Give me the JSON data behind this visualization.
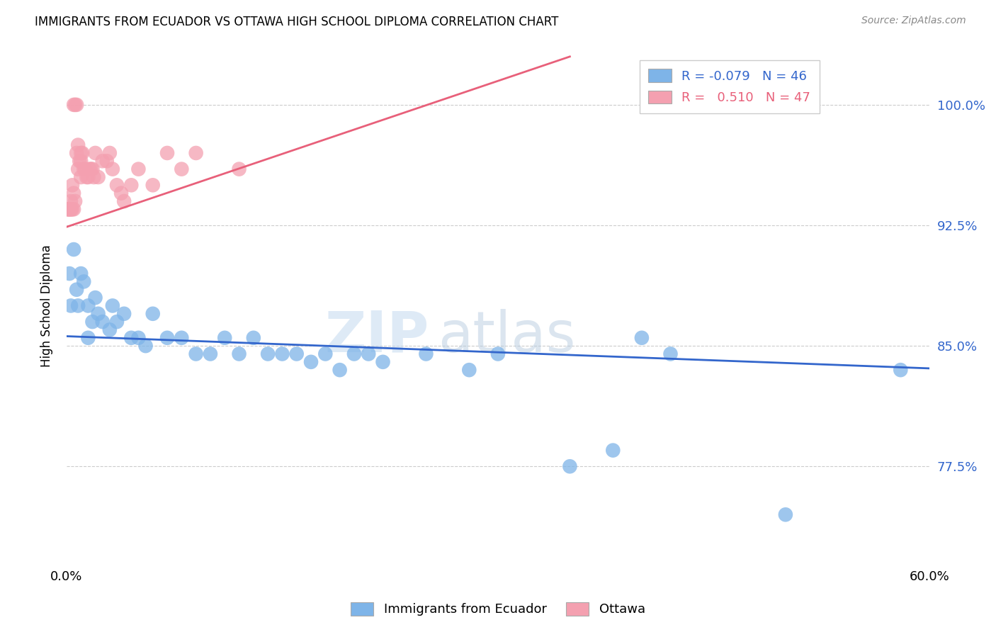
{
  "title": "IMMIGRANTS FROM ECUADOR VS OTTAWA HIGH SCHOOL DIPLOMA CORRELATION CHART",
  "source": "Source: ZipAtlas.com",
  "xlabel_blue": "Immigrants from Ecuador",
  "xlabel_pink": "Ottawa",
  "ylabel": "High School Diploma",
  "xlim": [
    0.0,
    0.6
  ],
  "ylim": [
    0.715,
    1.035
  ],
  "yticks": [
    0.775,
    0.85,
    0.925,
    1.0
  ],
  "yticklabels_right": [
    "77.5%",
    "85.0%",
    "92.5%",
    "100.0%"
  ],
  "legend_blue_R": "-0.079",
  "legend_blue_N": "46",
  "legend_pink_R": "0.510",
  "legend_pink_N": "47",
  "blue_color": "#7EB4E8",
  "pink_color": "#F4A0B0",
  "blue_line_color": "#3366CC",
  "pink_line_color": "#E8607A",
  "watermark_zip": "ZIP",
  "watermark_atlas": "atlas",
  "blue_scatter_x": [
    0.002,
    0.003,
    0.005,
    0.007,
    0.008,
    0.01,
    0.012,
    0.015,
    0.015,
    0.018,
    0.02,
    0.022,
    0.025,
    0.03,
    0.032,
    0.035,
    0.04,
    0.045,
    0.05,
    0.055,
    0.06,
    0.07,
    0.08,
    0.09,
    0.1,
    0.11,
    0.12,
    0.13,
    0.14,
    0.15,
    0.16,
    0.17,
    0.18,
    0.19,
    0.2,
    0.21,
    0.22,
    0.25,
    0.28,
    0.3,
    0.35,
    0.38,
    0.4,
    0.42,
    0.5,
    0.58
  ],
  "blue_scatter_y": [
    0.895,
    0.875,
    0.91,
    0.885,
    0.875,
    0.895,
    0.89,
    0.855,
    0.875,
    0.865,
    0.88,
    0.87,
    0.865,
    0.86,
    0.875,
    0.865,
    0.87,
    0.855,
    0.855,
    0.85,
    0.87,
    0.855,
    0.855,
    0.845,
    0.845,
    0.855,
    0.845,
    0.855,
    0.845,
    0.845,
    0.845,
    0.84,
    0.845,
    0.835,
    0.845,
    0.845,
    0.84,
    0.845,
    0.835,
    0.845,
    0.775,
    0.785,
    0.855,
    0.845,
    0.745,
    0.835
  ],
  "pink_scatter_x": [
    0.001,
    0.001,
    0.002,
    0.002,
    0.003,
    0.003,
    0.003,
    0.004,
    0.004,
    0.005,
    0.005,
    0.005,
    0.006,
    0.006,
    0.007,
    0.007,
    0.008,
    0.008,
    0.009,
    0.01,
    0.01,
    0.01,
    0.011,
    0.012,
    0.013,
    0.014,
    0.015,
    0.016,
    0.017,
    0.018,
    0.019,
    0.02,
    0.022,
    0.025,
    0.028,
    0.03,
    0.032,
    0.035,
    0.038,
    0.04,
    0.045,
    0.05,
    0.06,
    0.07,
    0.08,
    0.09,
    0.12
  ],
  "pink_scatter_y": [
    0.935,
    0.935,
    0.935,
    0.935,
    0.935,
    0.935,
    0.94,
    0.935,
    0.95,
    0.935,
    0.945,
    1.0,
    0.94,
    1.0,
    0.97,
    1.0,
    0.96,
    0.975,
    0.965,
    0.965,
    0.955,
    0.97,
    0.97,
    0.96,
    0.96,
    0.955,
    0.955,
    0.96,
    0.96,
    0.96,
    0.955,
    0.97,
    0.955,
    0.965,
    0.965,
    0.97,
    0.96,
    0.95,
    0.945,
    0.94,
    0.95,
    0.96,
    0.95,
    0.97,
    0.96,
    0.97,
    0.96
  ],
  "blue_line_x": [
    0.0,
    0.6
  ],
  "blue_line_y": [
    0.856,
    0.836
  ],
  "pink_line_x": [
    0.0,
    0.35
  ],
  "pink_line_y": [
    0.924,
    1.03
  ]
}
